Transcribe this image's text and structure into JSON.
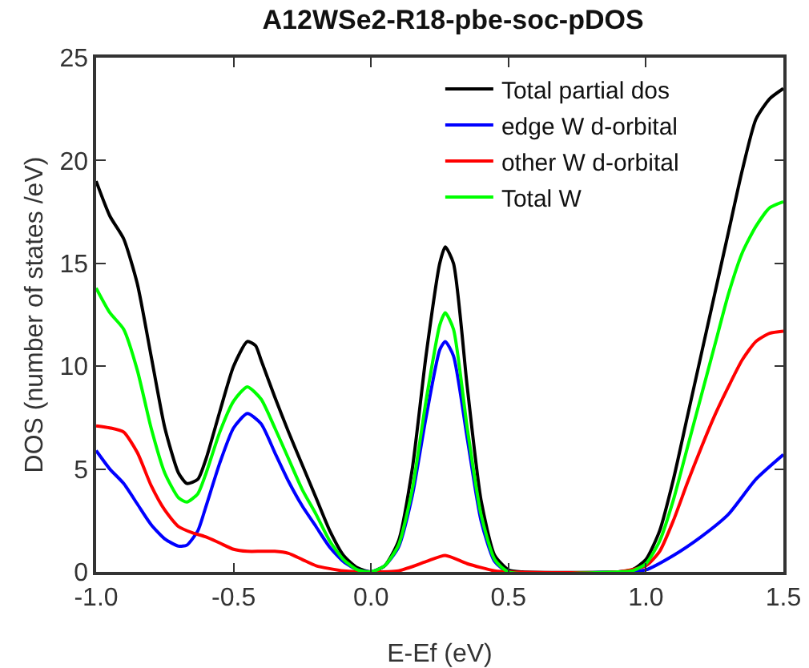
{
  "chart_data": {
    "type": "line",
    "title": "A12WSe2-R18-pbe-soc-pDOS",
    "xlabel": "E-Ef (eV)",
    "ylabel": "DOS (number of states /eV)",
    "xlim": [
      -1.0,
      1.5
    ],
    "ylim": [
      0,
      25
    ],
    "xticks": [
      {
        "value": -1,
        "label": "-1.0"
      },
      {
        "value": -0.5,
        "label": "-0.5"
      },
      {
        "value": 0,
        "label": "0.0"
      },
      {
        "value": 0.5,
        "label": "0.5"
      },
      {
        "value": 1,
        "label": "1.0"
      },
      {
        "value": 1.5,
        "label": "1.5"
      }
    ],
    "yticks": [
      0,
      5,
      10,
      15,
      20,
      25
    ],
    "grid": false,
    "legend": "top right",
    "marker": "none",
    "line_style": "solid",
    "series": [
      {
        "name": "Total partial dos",
        "color": "#000000",
        "x": [
          -1.0,
          -0.95,
          -0.9,
          -0.85,
          -0.8,
          -0.75,
          -0.7,
          -0.67,
          -0.63,
          -0.6,
          -0.55,
          -0.5,
          -0.45,
          -0.42,
          -0.4,
          -0.35,
          -0.3,
          -0.25,
          -0.2,
          -0.15,
          -0.1,
          -0.05,
          0,
          0.05,
          0.1,
          0.15,
          0.2,
          0.25,
          0.27,
          0.3,
          0.35,
          0.4,
          0.45,
          0.5,
          0.55,
          0.9,
          0.95,
          1.0,
          1.05,
          1.1,
          1.15,
          1.2,
          1.25,
          1.3,
          1.35,
          1.4,
          1.45,
          1.5
        ],
        "values": [
          19,
          17.3,
          16.2,
          14,
          10.5,
          7,
          4.8,
          4.3,
          4.5,
          5.5,
          7.8,
          10,
          11.2,
          11,
          10.3,
          8.5,
          6.8,
          5.2,
          3.6,
          2,
          0.8,
          0.2,
          0,
          0.3,
          1.5,
          5,
          10.5,
          15,
          15.8,
          15,
          9,
          3.5,
          0.8,
          0.1,
          0,
          0,
          0.1,
          0.6,
          2,
          4.5,
          7.5,
          10.5,
          13.5,
          16.5,
          19.5,
          22,
          23,
          23.5
        ]
      },
      {
        "name": "edge W d-orbital",
        "color": "#0000ff",
        "x": [
          -1.0,
          -0.95,
          -0.9,
          -0.85,
          -0.8,
          -0.75,
          -0.7,
          -0.67,
          -0.63,
          -0.6,
          -0.55,
          -0.5,
          -0.45,
          -0.4,
          -0.35,
          -0.3,
          -0.25,
          -0.2,
          -0.15,
          -0.1,
          -0.05,
          0,
          0.05,
          0.1,
          0.15,
          0.2,
          0.25,
          0.27,
          0.3,
          0.35,
          0.4,
          0.45,
          0.5,
          0.9,
          1.0,
          1.1,
          1.2,
          1.3,
          1.4,
          1.5
        ],
        "values": [
          5.9,
          5,
          4.3,
          3.3,
          2.3,
          1.6,
          1.25,
          1.3,
          2,
          3.2,
          5.3,
          7,
          7.7,
          7.2,
          5.8,
          4.4,
          3.2,
          2.2,
          1.2,
          0.5,
          0.1,
          0,
          0.3,
          1.2,
          3.7,
          7.5,
          10.8,
          11.2,
          10.5,
          6.5,
          2.5,
          0.5,
          0,
          0,
          0.1,
          0.8,
          1.7,
          2.8,
          4.5,
          5.7
        ]
      },
      {
        "name": "other W d-orbital",
        "color": "#ff0000",
        "x": [
          -1.0,
          -0.95,
          -0.9,
          -0.85,
          -0.8,
          -0.75,
          -0.7,
          -0.65,
          -0.6,
          -0.55,
          -0.5,
          -0.45,
          -0.4,
          -0.35,
          -0.3,
          -0.25,
          -0.2,
          -0.1,
          0,
          0.1,
          0.2,
          0.27,
          0.35,
          0.45,
          0.5,
          0.9,
          1.0,
          1.05,
          1.1,
          1.15,
          1.2,
          1.25,
          1.3,
          1.35,
          1.4,
          1.45,
          1.5
        ],
        "values": [
          7.1,
          7,
          6.8,
          5.8,
          4.2,
          3,
          2.2,
          1.9,
          1.7,
          1.4,
          1.1,
          1,
          1,
          1,
          0.9,
          0.6,
          0.3,
          0.05,
          0,
          0.05,
          0.5,
          0.8,
          0.4,
          0.05,
          0,
          0,
          0.3,
          1,
          2.5,
          4.3,
          6,
          7.6,
          9,
          10.3,
          11.2,
          11.6,
          11.7
        ]
      },
      {
        "name": "Total W",
        "color": "#00ff00",
        "x": [
          -1.0,
          -0.95,
          -0.9,
          -0.85,
          -0.8,
          -0.75,
          -0.7,
          -0.67,
          -0.63,
          -0.6,
          -0.55,
          -0.5,
          -0.45,
          -0.4,
          -0.35,
          -0.3,
          -0.25,
          -0.2,
          -0.15,
          -0.1,
          -0.05,
          0,
          0.05,
          0.1,
          0.15,
          0.2,
          0.25,
          0.27,
          0.3,
          0.35,
          0.4,
          0.45,
          0.5,
          0.9,
          0.95,
          1.0,
          1.05,
          1.1,
          1.15,
          1.2,
          1.25,
          1.3,
          1.35,
          1.4,
          1.45,
          1.5
        ],
        "values": [
          13.8,
          12.6,
          11.8,
          9.8,
          7,
          4.8,
          3.6,
          3.4,
          3.8,
          4.8,
          6.8,
          8.3,
          9,
          8.4,
          7,
          5.5,
          4,
          2.8,
          1.5,
          0.6,
          0.1,
          0,
          0.3,
          1.3,
          4,
          8.3,
          12,
          12.6,
          11.8,
          7,
          2.8,
          0.6,
          0,
          0,
          0.05,
          0.4,
          1.5,
          3.5,
          6,
          8.5,
          11,
          13.5,
          15.5,
          16.8,
          17.7,
          18
        ]
      }
    ]
  }
}
